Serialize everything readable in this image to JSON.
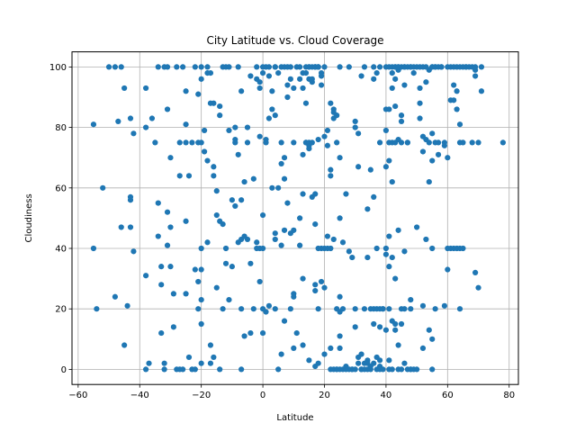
{
  "chart_data": {
    "type": "scatter",
    "title": "City Latitude vs. Cloud Coverage",
    "xlabel": "Latitude",
    "ylabel": "Cloudiness",
    "xlim": [
      -62,
      83
    ],
    "ylim": [
      -5,
      105
    ],
    "xticks": [
      "−60",
      "−40",
      "−20",
      "0",
      "20",
      "40",
      "60",
      "80"
    ],
    "yticks": [
      "0",
      "20",
      "40",
      "60",
      "80",
      "100"
    ],
    "xtick_values": [
      -60,
      -40,
      -20,
      0,
      20,
      40,
      60,
      80
    ],
    "ytick_values": [
      0,
      20,
      40,
      60,
      80,
      100
    ],
    "grid": true,
    "marker_color": "#1f77b4",
    "points": [
      [
        -55,
        81
      ],
      [
        -55,
        40
      ],
      [
        -54,
        20
      ],
      [
        -52,
        60
      ],
      [
        -50,
        100
      ],
      [
        -48,
        24
      ],
      [
        -48,
        100
      ],
      [
        -47,
        82
      ],
      [
        -46,
        100
      ],
      [
        -46,
        47
      ],
      [
        -45,
        93
      ],
      [
        -45,
        8
      ],
      [
        -44,
        21
      ],
      [
        -43,
        83
      ],
      [
        -43,
        56
      ],
      [
        -43,
        57
      ],
      [
        -43,
        47
      ],
      [
        -42,
        78
      ],
      [
        -42,
        39
      ],
      [
        -38,
        93
      ],
      [
        -38,
        80
      ],
      [
        -38,
        31
      ],
      [
        -38,
        0
      ],
      [
        -37,
        2
      ],
      [
        -36,
        83
      ],
      [
        -35,
        75
      ],
      [
        -34,
        100
      ],
      [
        -34,
        55
      ],
      [
        -34,
        44
      ],
      [
        -33,
        34
      ],
      [
        -33,
        28
      ],
      [
        -33,
        12
      ],
      [
        -32,
        0
      ],
      [
        -32,
        2
      ],
      [
        -32,
        100
      ],
      [
        -31,
        86
      ],
      [
        -31,
        100
      ],
      [
        -31,
        52
      ],
      [
        -31,
        41
      ],
      [
        -30,
        34
      ],
      [
        -30,
        70
      ],
      [
        -30,
        47
      ],
      [
        -29,
        14
      ],
      [
        -29,
        25
      ],
      [
        -28,
        100
      ],
      [
        -28,
        0
      ],
      [
        -27,
        75
      ],
      [
        -27,
        64
      ],
      [
        -27,
        0
      ],
      [
        -26,
        100
      ],
      [
        -26,
        0
      ],
      [
        -25,
        81
      ],
      [
        -25,
        92
      ],
      [
        -25,
        75
      ],
      [
        -25,
        49
      ],
      [
        -25,
        25
      ],
      [
        -24,
        64
      ],
      [
        -24,
        4
      ],
      [
        -23,
        0
      ],
      [
        -23,
        75
      ],
      [
        -22,
        33
      ],
      [
        -22,
        100
      ],
      [
        -22,
        0
      ],
      [
        -21,
        75
      ],
      [
        -21,
        91
      ],
      [
        -21,
        29
      ],
      [
        -21,
        20
      ],
      [
        -20,
        100
      ],
      [
        -20,
        96
      ],
      [
        -20,
        75
      ],
      [
        -20,
        40
      ],
      [
        -20,
        33
      ],
      [
        -20,
        2
      ],
      [
        -20,
        15
      ],
      [
        -20,
        23
      ],
      [
        -19,
        72
      ],
      [
        -19,
        79
      ],
      [
        -18,
        98
      ],
      [
        -18,
        100
      ],
      [
        -18,
        69
      ],
      [
        -18,
        42
      ],
      [
        -17,
        98
      ],
      [
        -17,
        88
      ],
      [
        -17,
        8
      ],
      [
        -17,
        2
      ],
      [
        -16,
        88
      ],
      [
        -16,
        4
      ],
      [
        -16,
        67
      ],
      [
        -16,
        64
      ],
      [
        -15,
        51
      ],
      [
        -15,
        27
      ],
      [
        -15,
        59
      ],
      [
        -14,
        49
      ],
      [
        -14,
        87
      ],
      [
        -14,
        84
      ],
      [
        -14,
        0
      ],
      [
        -13,
        48
      ],
      [
        -13,
        100
      ],
      [
        -13,
        20
      ],
      [
        -12,
        100
      ],
      [
        -12,
        35
      ],
      [
        -12,
        40
      ],
      [
        -11,
        23
      ],
      [
        -11,
        79
      ],
      [
        -11,
        100
      ],
      [
        -10,
        34
      ],
      [
        -10,
        56
      ],
      [
        -9,
        54
      ],
      [
        -9,
        76
      ],
      [
        -9,
        75
      ],
      [
        -9,
        80
      ],
      [
        -8,
        71
      ],
      [
        -8,
        42
      ],
      [
        -8,
        100
      ],
      [
        -7,
        0
      ],
      [
        -7,
        56
      ],
      [
        -7,
        20
      ],
      [
        -7,
        92
      ],
      [
        -7,
        43
      ],
      [
        -6,
        44
      ],
      [
        -6,
        11
      ],
      [
        -6,
        62
      ],
      [
        -5,
        43
      ],
      [
        -5,
        80
      ],
      [
        -5,
        75
      ],
      [
        -4,
        97
      ],
      [
        -4,
        35
      ],
      [
        -4,
        12
      ],
      [
        -3,
        20
      ],
      [
        -3,
        63
      ],
      [
        -2,
        40
      ],
      [
        -2,
        100
      ],
      [
        -2,
        96
      ],
      [
        -2,
        42
      ],
      [
        -1,
        77
      ],
      [
        -1,
        40
      ],
      [
        -1,
        29
      ],
      [
        -1,
        95
      ],
      [
        -1,
        93
      ],
      [
        0,
        100
      ],
      [
        0,
        40
      ],
      [
        0,
        20
      ],
      [
        0,
        12
      ],
      [
        0,
        98
      ],
      [
        0,
        51
      ],
      [
        1,
        75
      ],
      [
        1,
        76
      ],
      [
        1,
        19
      ],
      [
        1,
        100
      ],
      [
        2,
        100
      ],
      [
        2,
        83
      ],
      [
        2,
        21
      ],
      [
        2,
        97
      ],
      [
        3,
        86
      ],
      [
        3,
        60
      ],
      [
        3,
        92
      ],
      [
        4,
        84
      ],
      [
        4,
        45
      ],
      [
        4,
        43
      ],
      [
        4,
        20
      ],
      [
        4,
        100
      ],
      [
        4,
        100
      ],
      [
        5,
        60
      ],
      [
        5,
        0
      ],
      [
        5,
        98
      ],
      [
        6,
        100
      ],
      [
        6,
        75
      ],
      [
        6,
        41
      ],
      [
        6,
        68
      ],
      [
        6,
        5
      ],
      [
        7,
        70
      ],
      [
        7,
        16
      ],
      [
        7,
        46
      ],
      [
        7,
        63
      ],
      [
        7,
        100
      ],
      [
        8,
        100
      ],
      [
        8,
        94
      ],
      [
        8,
        90
      ],
      [
        8,
        55
      ],
      [
        9,
        96
      ],
      [
        9,
        100
      ],
      [
        9,
        45
      ],
      [
        9,
        20
      ],
      [
        10,
        46
      ],
      [
        10,
        75
      ],
      [
        10,
        93
      ],
      [
        10,
        25
      ],
      [
        10,
        24
      ],
      [
        10,
        7
      ],
      [
        11,
        100
      ],
      [
        11,
        12
      ],
      [
        12,
        96
      ],
      [
        12,
        50
      ],
      [
        12,
        41
      ],
      [
        12,
        100
      ],
      [
        13,
        98
      ],
      [
        13,
        93
      ],
      [
        13,
        30
      ],
      [
        13,
        58
      ],
      [
        13,
        71
      ],
      [
        13,
        8
      ],
      [
        14,
        100
      ],
      [
        14,
        75
      ],
      [
        14,
        88
      ],
      [
        14,
        75
      ],
      [
        14,
        98
      ],
      [
        15,
        100
      ],
      [
        15,
        73
      ],
      [
        15,
        100
      ],
      [
        15,
        3
      ],
      [
        15,
        74
      ],
      [
        15,
        75
      ],
      [
        15,
        96
      ],
      [
        16,
        100
      ],
      [
        16,
        96
      ],
      [
        16,
        95
      ],
      [
        16,
        57
      ],
      [
        16,
        75
      ],
      [
        17,
        100
      ],
      [
        17,
        100
      ],
      [
        17,
        100
      ],
      [
        17,
        58
      ],
      [
        17,
        48
      ],
      [
        17,
        28
      ],
      [
        17,
        26
      ],
      [
        17,
        1
      ],
      [
        18,
        100
      ],
      [
        18,
        100
      ],
      [
        18,
        100
      ],
      [
        18,
        40
      ],
      [
        18,
        76
      ],
      [
        18,
        20
      ],
      [
        18,
        2
      ],
      [
        19,
        98
      ],
      [
        19,
        97
      ],
      [
        19,
        94
      ],
      [
        19,
        40
      ],
      [
        19,
        29
      ],
      [
        20,
        40
      ],
      [
        20,
        5
      ],
      [
        20,
        100
      ],
      [
        20,
        27
      ],
      [
        20,
        77
      ],
      [
        21,
        79
      ],
      [
        21,
        74
      ],
      [
        21,
        44
      ],
      [
        21,
        40
      ],
      [
        22,
        88
      ],
      [
        22,
        66
      ],
      [
        22,
        64
      ],
      [
        22,
        40
      ],
      [
        22,
        7
      ],
      [
        22,
        0
      ],
      [
        23,
        86
      ],
      [
        23,
        83
      ],
      [
        23,
        85
      ],
      [
        23,
        43
      ],
      [
        23,
        0
      ],
      [
        24,
        75
      ],
      [
        24,
        20
      ],
      [
        24,
        84
      ],
      [
        24,
        0
      ],
      [
        24,
        0
      ],
      [
        25,
        100
      ],
      [
        25,
        70
      ],
      [
        25,
        50
      ],
      [
        25,
        24
      ],
      [
        25,
        11
      ],
      [
        25,
        7
      ],
      [
        25,
        19
      ],
      [
        25,
        0
      ],
      [
        26,
        42
      ],
      [
        26,
        0
      ],
      [
        26,
        20
      ],
      [
        27,
        58
      ],
      [
        27,
        0
      ],
      [
        27,
        1
      ],
      [
        28,
        100
      ],
      [
        28,
        0
      ],
      [
        28,
        39
      ],
      [
        29,
        37
      ],
      [
        29,
        0
      ],
      [
        29,
        0
      ],
      [
        30,
        82
      ],
      [
        30,
        80
      ],
      [
        30,
        14
      ],
      [
        30,
        0
      ],
      [
        30,
        20
      ],
      [
        31,
        67
      ],
      [
        31,
        78
      ],
      [
        31,
        2
      ],
      [
        31,
        4
      ],
      [
        32,
        97
      ],
      [
        32,
        5
      ],
      [
        32,
        0
      ],
      [
        32,
        0
      ],
      [
        33,
        100
      ],
      [
        33,
        20
      ],
      [
        33,
        2
      ],
      [
        33,
        0
      ],
      [
        34,
        2
      ],
      [
        34,
        3
      ],
      [
        34,
        0
      ],
      [
        34,
        53
      ],
      [
        34,
        37
      ],
      [
        35,
        66
      ],
      [
        35,
        20
      ],
      [
        35,
        0
      ],
      [
        35,
        1
      ],
      [
        36,
        100
      ],
      [
        36,
        57
      ],
      [
        36,
        96
      ],
      [
        36,
        15
      ],
      [
        36,
        20
      ],
      [
        36,
        2
      ],
      [
        37,
        40
      ],
      [
        37,
        20
      ],
      [
        37,
        4
      ],
      [
        37,
        0
      ],
      [
        37,
        98
      ],
      [
        38,
        100
      ],
      [
        38,
        75
      ],
      [
        38,
        20
      ],
      [
        38,
        1
      ],
      [
        38,
        3
      ],
      [
        38,
        0
      ],
      [
        38,
        14
      ],
      [
        39,
        20
      ],
      [
        39,
        20
      ],
      [
        39,
        0
      ],
      [
        40,
        100
      ],
      [
        40,
        86
      ],
      [
        40,
        79
      ],
      [
        40,
        67
      ],
      [
        40,
        38
      ],
      [
        40,
        40
      ],
      [
        40,
        13
      ],
      [
        41,
        100
      ],
      [
        41,
        75
      ],
      [
        41,
        20
      ],
      [
        41,
        0
      ],
      [
        41,
        86
      ],
      [
        41,
        69
      ],
      [
        41,
        44
      ],
      [
        41,
        34
      ],
      [
        41,
        3
      ],
      [
        42,
        62
      ],
      [
        42,
        100
      ],
      [
        42,
        98
      ],
      [
        42,
        93
      ],
      [
        42,
        75
      ],
      [
        42,
        37
      ],
      [
        42,
        16
      ],
      [
        42,
        0
      ],
      [
        43,
        100
      ],
      [
        43,
        75
      ],
      [
        43,
        87
      ],
      [
        43,
        96
      ],
      [
        43,
        13
      ],
      [
        43,
        30
      ],
      [
        43,
        15
      ],
      [
        43,
        100
      ],
      [
        44,
        99
      ],
      [
        44,
        100
      ],
      [
        44,
        100
      ],
      [
        44,
        0
      ],
      [
        44,
        8
      ],
      [
        44,
        76
      ],
      [
        44,
        46
      ],
      [
        45,
        84
      ],
      [
        45,
        82
      ],
      [
        45,
        75
      ],
      [
        45,
        100
      ],
      [
        45,
        15
      ],
      [
        45,
        20
      ],
      [
        45,
        0
      ],
      [
        46,
        100
      ],
      [
        46,
        100
      ],
      [
        46,
        94
      ],
      [
        46,
        20
      ],
      [
        46,
        2
      ],
      [
        46,
        39
      ],
      [
        47,
        75
      ],
      [
        47,
        100
      ],
      [
        47,
        0
      ],
      [
        47,
        75
      ],
      [
        48,
        100
      ],
      [
        48,
        100
      ],
      [
        48,
        0
      ],
      [
        48,
        23
      ],
      [
        48,
        20
      ],
      [
        48,
        0
      ],
      [
        49,
        100
      ],
      [
        49,
        98
      ],
      [
        49,
        0
      ],
      [
        50,
        100
      ],
      [
        50,
        47
      ],
      [
        50,
        0
      ],
      [
        51,
        100
      ],
      [
        51,
        93
      ],
      [
        51,
        83
      ],
      [
        51,
        88
      ],
      [
        52,
        77
      ],
      [
        52,
        72
      ],
      [
        52,
        100
      ],
      [
        52,
        21
      ],
      [
        52,
        7
      ],
      [
        53,
        76
      ],
      [
        53,
        95
      ],
      [
        53,
        100
      ],
      [
        53,
        43
      ],
      [
        54,
        99
      ],
      [
        54,
        75
      ],
      [
        54,
        62
      ],
      [
        54,
        13
      ],
      [
        55,
        100
      ],
      [
        55,
        100
      ],
      [
        55,
        69
      ],
      [
        55,
        78
      ],
      [
        55,
        40
      ],
      [
        55,
        10
      ],
      [
        55,
        0
      ],
      [
        56,
        100
      ],
      [
        56,
        75
      ],
      [
        56,
        100
      ],
      [
        56,
        20
      ],
      [
        57,
        100
      ],
      [
        57,
        75
      ],
      [
        57,
        71
      ],
      [
        58,
        100
      ],
      [
        58,
        100
      ],
      [
        59,
        75
      ],
      [
        59,
        74
      ],
      [
        59,
        21
      ],
      [
        60,
        100
      ],
      [
        60,
        70
      ],
      [
        60,
        40
      ],
      [
        60,
        33
      ],
      [
        61,
        100
      ],
      [
        61,
        89
      ],
      [
        61,
        40
      ],
      [
        62,
        100
      ],
      [
        62,
        94
      ],
      [
        62,
        89
      ],
      [
        62,
        40
      ],
      [
        63,
        100
      ],
      [
        63,
        92
      ],
      [
        63,
        86
      ],
      [
        63,
        40
      ],
      [
        64,
        100
      ],
      [
        64,
        75
      ],
      [
        64,
        40
      ],
      [
        64,
        81
      ],
      [
        64,
        20
      ],
      [
        65,
        100
      ],
      [
        65,
        75
      ],
      [
        65,
        40
      ],
      [
        66,
        100
      ],
      [
        66,
        100
      ],
      [
        67,
        100
      ],
      [
        68,
        100
      ],
      [
        68,
        75
      ],
      [
        69,
        100
      ],
      [
        69,
        97
      ],
      [
        69,
        99
      ],
      [
        69,
        32
      ],
      [
        70,
        27
      ],
      [
        70,
        75
      ],
      [
        71,
        92
      ],
      [
        71,
        100
      ],
      [
        78,
        75
      ]
    ]
  }
}
